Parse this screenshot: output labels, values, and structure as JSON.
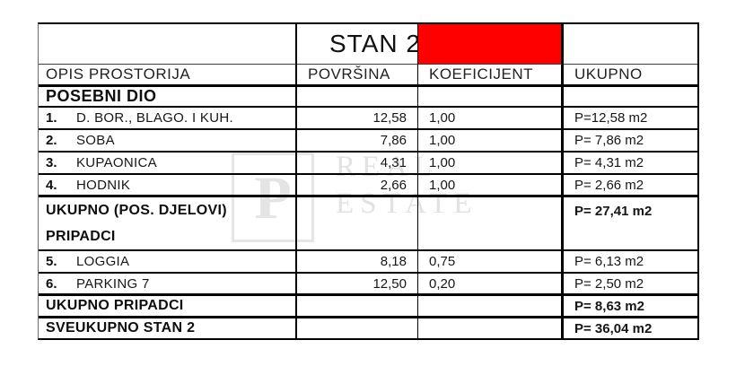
{
  "colors": {
    "red_cell": "#ff0000",
    "border": "#000000",
    "watermark": "#e2e2e2"
  },
  "watermark": {
    "monogram": "P",
    "line1": "REAL",
    "line2": "ESTATE"
  },
  "table": {
    "header": {
      "apartment_title": "STAN 2"
    },
    "columns": {
      "opis": "OPIS PROSTORIJA",
      "povrsina": "POVRŠINA",
      "koeficijent": "KOEFICIJENT",
      "ukupno": "UKUPNO"
    },
    "rows": [
      {
        "label": "POSEBNI DIO"
      },
      {
        "num": "1.",
        "name": "D. BOR., BLAGO. I KUH.",
        "area": "12,58",
        "coef": "1,00",
        "total": "P=12,58 m2"
      },
      {
        "num": "2.",
        "name": "SOBA",
        "area": "7,86",
        "coef": "1,00",
        "total": "P= 7,86 m2"
      },
      {
        "num": "3.",
        "name": "KUPAONICA",
        "area": "4,31",
        "coef": "1,00",
        "total": "P= 4,31 m2"
      },
      {
        "num": "4.",
        "name": "HODNIK",
        "area": "2,66",
        "coef": "1,00",
        "total": "P= 2,66 m2"
      },
      {
        "label": "UKUPNO (POS. DJELOVI)",
        "total": "P= 27,41 m2"
      },
      {
        "label": "PRIPADCI"
      },
      {
        "num": "5.",
        "name": "LOGGIA",
        "area": "8,18",
        "coef": "0,75",
        "total": "P= 6,13 m2"
      },
      {
        "num": "6.",
        "name": "PARKING 7",
        "area": "12,50",
        "coef": "0,20",
        "total": "P= 2,50 m2"
      },
      {
        "label": "UKUPNO PRIPADCI",
        "total": "P= 8,63 m2"
      },
      {
        "label": "SVEUKUPNO STAN 2",
        "total": "P= 36,04 m2"
      }
    ]
  }
}
